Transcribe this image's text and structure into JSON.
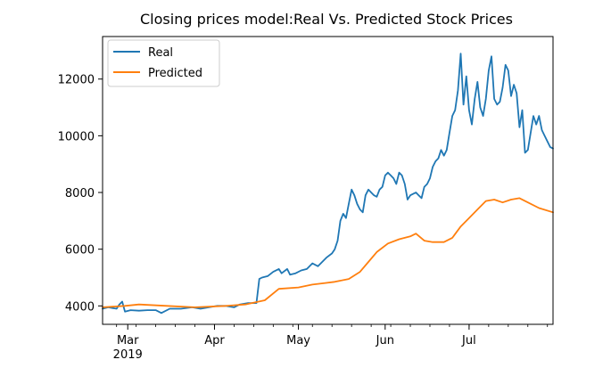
{
  "chart_data": {
    "type": "line",
    "title": "Closing prices model:Real Vs. Predicted Stock Prices",
    "xlabel": "",
    "ylabel": "",
    "x_start": "2019-02-20",
    "x_end": "2019-07-31",
    "ylim": [
      3350,
      13500
    ],
    "yticks": [
      4000,
      6000,
      8000,
      10000,
      12000
    ],
    "xticks": [
      {
        "date": "2019-03-01",
        "label": "Mar",
        "sublabel": "2019"
      },
      {
        "date": "2019-04-01",
        "label": "Apr",
        "sublabel": ""
      },
      {
        "date": "2019-05-01",
        "label": "May",
        "sublabel": ""
      },
      {
        "date": "2019-06-01",
        "label": "Jun",
        "sublabel": ""
      },
      {
        "date": "2019-07-01",
        "label": "Jul",
        "sublabel": ""
      }
    ],
    "grid": false,
    "legend": {
      "position": "upper-left"
    },
    "series": [
      {
        "name": "Real",
        "color": "#1f77b4",
        "points": [
          [
            "2019-02-20",
            3900
          ],
          [
            "2019-02-22",
            3950
          ],
          [
            "2019-02-25",
            3900
          ],
          [
            "2019-02-26",
            4050
          ],
          [
            "2019-02-27",
            4150
          ],
          [
            "2019-02-28",
            3800
          ],
          [
            "2019-03-02",
            3850
          ],
          [
            "2019-03-05",
            3830
          ],
          [
            "2019-03-08",
            3850
          ],
          [
            "2019-03-11",
            3850
          ],
          [
            "2019-03-13",
            3750
          ],
          [
            "2019-03-16",
            3900
          ],
          [
            "2019-03-20",
            3900
          ],
          [
            "2019-03-24",
            3950
          ],
          [
            "2019-03-27",
            3900
          ],
          [
            "2019-03-30",
            3950
          ],
          [
            "2019-04-02",
            4000
          ],
          [
            "2019-04-05",
            4000
          ],
          [
            "2019-04-08",
            3950
          ],
          [
            "2019-04-10",
            4050
          ],
          [
            "2019-04-13",
            4100
          ],
          [
            "2019-04-16",
            4100
          ],
          [
            "2019-04-17",
            4950
          ],
          [
            "2019-04-18",
            5000
          ],
          [
            "2019-04-20",
            5050
          ],
          [
            "2019-04-22",
            5200
          ],
          [
            "2019-04-24",
            5300
          ],
          [
            "2019-04-25",
            5150
          ],
          [
            "2019-04-27",
            5300
          ],
          [
            "2019-04-28",
            5100
          ],
          [
            "2019-04-30",
            5150
          ],
          [
            "2019-05-02",
            5250
          ],
          [
            "2019-05-04",
            5300
          ],
          [
            "2019-05-06",
            5500
          ],
          [
            "2019-05-08",
            5400
          ],
          [
            "2019-05-10",
            5600
          ],
          [
            "2019-05-11",
            5700
          ],
          [
            "2019-05-13",
            5850
          ],
          [
            "2019-05-14",
            6000
          ],
          [
            "2019-05-15",
            6300
          ],
          [
            "2019-05-16",
            7000
          ],
          [
            "2019-05-17",
            7250
          ],
          [
            "2019-05-18",
            7100
          ],
          [
            "2019-05-19",
            7600
          ],
          [
            "2019-05-20",
            8100
          ],
          [
            "2019-05-21",
            7900
          ],
          [
            "2019-05-22",
            7600
          ],
          [
            "2019-05-23",
            7400
          ],
          [
            "2019-05-24",
            7300
          ],
          [
            "2019-05-25",
            7900
          ],
          [
            "2019-05-26",
            8100
          ],
          [
            "2019-05-27",
            8000
          ],
          [
            "2019-05-28",
            7900
          ],
          [
            "2019-05-29",
            7850
          ],
          [
            "2019-05-30",
            8100
          ],
          [
            "2019-05-31",
            8200
          ],
          [
            "2019-06-01",
            8600
          ],
          [
            "2019-06-02",
            8700
          ],
          [
            "2019-06-03",
            8600
          ],
          [
            "2019-06-04",
            8500
          ],
          [
            "2019-06-05",
            8300
          ],
          [
            "2019-06-06",
            8700
          ],
          [
            "2019-06-07",
            8600
          ],
          [
            "2019-06-08",
            8300
          ],
          [
            "2019-06-09",
            7750
          ],
          [
            "2019-06-10",
            7900
          ],
          [
            "2019-06-11",
            7950
          ],
          [
            "2019-06-12",
            8000
          ],
          [
            "2019-06-13",
            7900
          ],
          [
            "2019-06-14",
            7800
          ],
          [
            "2019-06-15",
            8200
          ],
          [
            "2019-06-16",
            8300
          ],
          [
            "2019-06-17",
            8500
          ],
          [
            "2019-06-18",
            8900
          ],
          [
            "2019-06-19",
            9100
          ],
          [
            "2019-06-20",
            9200
          ],
          [
            "2019-06-21",
            9500
          ],
          [
            "2019-06-22",
            9300
          ],
          [
            "2019-06-23",
            9500
          ],
          [
            "2019-06-24",
            10100
          ],
          [
            "2019-06-25",
            10700
          ],
          [
            "2019-06-26",
            10900
          ],
          [
            "2019-06-27",
            11600
          ],
          [
            "2019-06-28",
            12900
          ],
          [
            "2019-06-29",
            11100
          ],
          [
            "2019-06-30",
            12100
          ],
          [
            "2019-07-01",
            10900
          ],
          [
            "2019-07-02",
            10400
          ],
          [
            "2019-07-03",
            11300
          ],
          [
            "2019-07-04",
            11900
          ],
          [
            "2019-07-05",
            11000
          ],
          [
            "2019-07-06",
            10700
          ],
          [
            "2019-07-07",
            11300
          ],
          [
            "2019-07-08",
            12300
          ],
          [
            "2019-07-09",
            12800
          ],
          [
            "2019-07-10",
            11300
          ],
          [
            "2019-07-11",
            11100
          ],
          [
            "2019-07-12",
            11200
          ],
          [
            "2019-07-13",
            11700
          ],
          [
            "2019-07-14",
            12500
          ],
          [
            "2019-07-15",
            12300
          ],
          [
            "2019-07-16",
            11400
          ],
          [
            "2019-07-17",
            11800
          ],
          [
            "2019-07-18",
            11500
          ],
          [
            "2019-07-19",
            10300
          ],
          [
            "2019-07-20",
            10900
          ],
          [
            "2019-07-21",
            9400
          ],
          [
            "2019-07-22",
            9500
          ],
          [
            "2019-07-23",
            10100
          ],
          [
            "2019-07-24",
            10700
          ],
          [
            "2019-07-25",
            10400
          ],
          [
            "2019-07-26",
            10700
          ],
          [
            "2019-07-27",
            10200
          ],
          [
            "2019-07-28",
            10000
          ],
          [
            "2019-07-29",
            9800
          ],
          [
            "2019-07-30",
            9600
          ],
          [
            "2019-07-31",
            9550
          ]
        ]
      },
      {
        "name": "Predicted",
        "color": "#ff7f0e",
        "points": [
          [
            "2019-02-20",
            3950
          ],
          [
            "2019-02-28",
            4000
          ],
          [
            "2019-03-05",
            4050
          ],
          [
            "2019-03-15",
            4000
          ],
          [
            "2019-03-25",
            3950
          ],
          [
            "2019-04-05",
            4000
          ],
          [
            "2019-04-12",
            4050
          ],
          [
            "2019-04-19",
            4200
          ],
          [
            "2019-04-24",
            4600
          ],
          [
            "2019-05-01",
            4650
          ],
          [
            "2019-05-06",
            4750
          ],
          [
            "2019-05-10",
            4800
          ],
          [
            "2019-05-14",
            4850
          ],
          [
            "2019-05-19",
            4950
          ],
          [
            "2019-05-23",
            5200
          ],
          [
            "2019-05-26",
            5550
          ],
          [
            "2019-05-29",
            5900
          ],
          [
            "2019-06-02",
            6200
          ],
          [
            "2019-06-06",
            6350
          ],
          [
            "2019-06-10",
            6450
          ],
          [
            "2019-06-12",
            6550
          ],
          [
            "2019-06-15",
            6300
          ],
          [
            "2019-06-18",
            6250
          ],
          [
            "2019-06-22",
            6250
          ],
          [
            "2019-06-25",
            6400
          ],
          [
            "2019-06-28",
            6800
          ],
          [
            "2019-07-01",
            7100
          ],
          [
            "2019-07-04",
            7400
          ],
          [
            "2019-07-07",
            7700
          ],
          [
            "2019-07-10",
            7750
          ],
          [
            "2019-07-13",
            7650
          ],
          [
            "2019-07-16",
            7750
          ],
          [
            "2019-07-19",
            7800
          ],
          [
            "2019-07-22",
            7650
          ],
          [
            "2019-07-26",
            7450
          ],
          [
            "2019-07-31",
            7300
          ]
        ]
      }
    ]
  }
}
